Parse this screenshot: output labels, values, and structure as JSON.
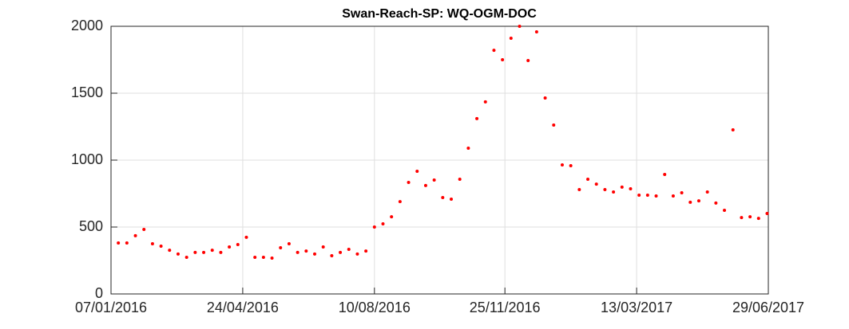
{
  "chart_data": {
    "type": "scatter",
    "title": "Swan-Reach-SP: WQ-OGM-DOC",
    "x": [
      "13/01/2016",
      "20/01/2016",
      "27/01/2016",
      "03/02/2016",
      "10/02/2016",
      "17/02/2016",
      "24/02/2016",
      "02/03/2016",
      "09/03/2016",
      "16/03/2016",
      "23/03/2016",
      "30/03/2016",
      "06/04/2016",
      "13/04/2016",
      "20/04/2016",
      "27/04/2016",
      "04/05/2016",
      "11/05/2016",
      "18/05/2016",
      "25/05/2016",
      "01/06/2016",
      "08/06/2016",
      "15/06/2016",
      "22/06/2016",
      "29/06/2016",
      "06/07/2016",
      "13/07/2016",
      "20/07/2016",
      "27/07/2016",
      "03/08/2016",
      "10/08/2016",
      "17/08/2016",
      "24/08/2016",
      "31/08/2016",
      "07/09/2016",
      "14/09/2016",
      "21/09/2016",
      "28/09/2016",
      "05/10/2016",
      "12/10/2016",
      "19/10/2016",
      "26/10/2016",
      "02/11/2016",
      "09/11/2016",
      "16/11/2016",
      "23/11/2016",
      "30/11/2016",
      "07/12/2016",
      "14/12/2016",
      "21/12/2016",
      "28/12/2016",
      "04/01/2017",
      "11/01/2017",
      "18/01/2017",
      "25/01/2017",
      "01/02/2017",
      "08/02/2017",
      "15/02/2017",
      "22/02/2017",
      "01/03/2017",
      "08/03/2017",
      "15/03/2017",
      "22/03/2017",
      "29/03/2017",
      "05/04/2017",
      "12/04/2017",
      "19/04/2017",
      "26/04/2017",
      "03/05/2017",
      "10/05/2017",
      "17/05/2017",
      "24/05/2017",
      "31/05/2017",
      "07/06/2017",
      "14/06/2017",
      "21/06/2017",
      "28/06/2017"
    ],
    "values": [
      381,
      381,
      435,
      482,
      375,
      357,
      327,
      298,
      274,
      310,
      310,
      327,
      310,
      351,
      369,
      423,
      274,
      274,
      268,
      345,
      375,
      310,
      321,
      298,
      351,
      286,
      310,
      333,
      298,
      321,
      500,
      524,
      577,
      690,
      833,
      917,
      810,
      851,
      720,
      708,
      857,
      1089,
      1310,
      1435,
      1821,
      1750,
      1911,
      2000,
      1744,
      1958,
      1464,
      1262,
      964,
      958,
      780,
      857,
      821,
      780,
      762,
      798,
      786,
      738,
      738,
      732,
      893,
      732,
      756,
      685,
      696,
      762,
      679,
      625,
      1226,
      571,
      577,
      565,
      601
    ],
    "color": "#ff0000",
    "xlim": [
      "07/01/2016",
      "29/06/2017"
    ],
    "xticks": [
      "07/01/2016",
      "24/04/2016",
      "10/08/2016",
      "25/11/2016",
      "13/03/2017",
      "29/06/2017"
    ],
    "ylim": [
      0,
      2000
    ],
    "yticks": [
      0,
      500,
      1000,
      1500,
      2000
    ],
    "grid": true
  }
}
